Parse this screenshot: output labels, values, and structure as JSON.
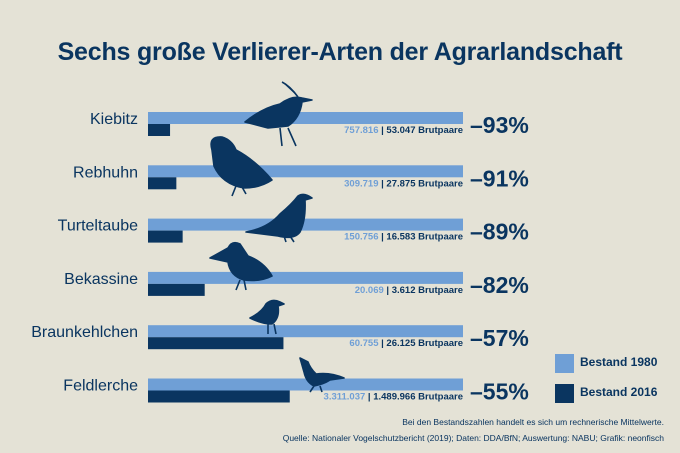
{
  "title": "Sechs große Verlierer-Arten der Agrarlandschaft",
  "colors": {
    "background": "#e4e2d6",
    "bestand_1980": "#6f9fd6",
    "bestand_2016": "#0a3560"
  },
  "chart_data": {
    "type": "bar",
    "title": "Sechs große Verlierer-Arten der Agrarlandschaft",
    "unit": "Brutpaare",
    "categories": [
      "Kiebitz",
      "Rebhuhn",
      "Turteltaube",
      "Bekassine",
      "Braunkehlchen",
      "Feldlerche"
    ],
    "series": [
      {
        "name": "Bestand 1980",
        "values": [
          757816,
          309719,
          150756,
          20069,
          60755,
          3311037
        ],
        "labels": [
          "757.816",
          "309.719",
          "150.756",
          "20.069",
          "60.755",
          "3.311.037"
        ]
      },
      {
        "name": "Bestand 2016",
        "values": [
          53047,
          27875,
          16583,
          3612,
          26125,
          1489966
        ],
        "labels": [
          "53.047",
          "27.875",
          "16.583",
          "3.612",
          "26.125",
          "1.489.966"
        ]
      }
    ],
    "change_labels": [
      "–93%",
      "–91%",
      "–89%",
      "–82%",
      "–57%",
      "–55%"
    ],
    "legend": [
      "Bestand 1980",
      "Bestand 2016"
    ],
    "legend_position": "bottom-right"
  },
  "unit_label": "Brutpaare",
  "note": "Bei den Bestandszahlen handelt es sich um rechnerische Mittelwerte.",
  "source": "Quelle: Nationaler Vogelschutzbericht (2019); Daten: DDA/BfN; Auswertung: NABU; Grafik: neonfisch"
}
